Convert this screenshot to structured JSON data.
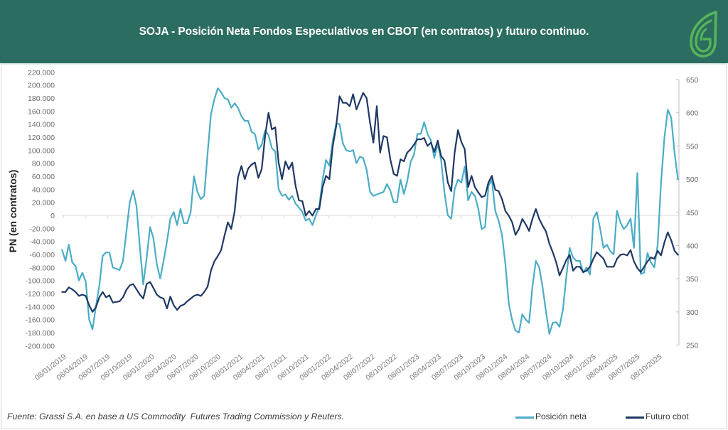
{
  "header": {
    "logo_icon": "grassi-leaf-logo-icon",
    "background": "#2b6d60",
    "logo_color": "#56b45a"
  },
  "footer": {
    "source": "Fuente: Grassi S.A. en base a US Commodity  Futures Trading Commission y Reuters."
  },
  "chart_data": {
    "type": "line",
    "title": "SOJA - Posición Neta Fondos Especulativos en CBOT (en contratos) y futuro continuo.",
    "ylabel": "PN  (en contratos)",
    "y2label": "",
    "grid": false,
    "zero_line": true,
    "legend": "bottom-right",
    "x": {
      "type": "date",
      "start": "2019-01-01",
      "step_days": 14,
      "tick_labels": [
        "08/01/2019",
        "08/04/2019",
        "08/07/2019",
        "08/10/2019",
        "08/01/2020",
        "08/04/2020",
        "08/07/2020",
        "08/10/2020",
        "08/01/2021",
        "08/04/2021",
        "08/07/2021",
        "08/10/2021",
        "08/01/2022",
        "08/04/2022",
        "08/07/2022",
        "08/10/2022",
        "08/01/2023",
        "08/04/2023",
        "08/07/2023",
        "08/10/2023",
        "08/01/2024",
        "08/04/2024",
        "08/07/2024",
        "08/10/2024",
        "08/01/2025",
        "08/04/2025",
        "08/07/2025",
        "08/10/2025"
      ]
    },
    "y_left": {
      "min": -200000,
      "max": 220000,
      "tick_step": 20000,
      "tick_labels": [
        "-200.000",
        "-180.000",
        "-160.000",
        "-140.000",
        "-120.000",
        "-100.000",
        "-80.000",
        "-60.000",
        "-40.000",
        "-20.000",
        "0",
        "20.000",
        "40.000",
        "60.000",
        "80.000",
        "100.000",
        "120.000",
        "140.000",
        "160.000",
        "180.000",
        "200.000",
        "220.000"
      ]
    },
    "y_right": {
      "min": 250,
      "max": 650,
      "tick_step": 50,
      "tick_labels": [
        "250",
        "300",
        "350",
        "400",
        "450",
        "500",
        "550",
        "600",
        "650"
      ]
    },
    "series": [
      {
        "name": "Posición neta",
        "axis": "left",
        "color": "#4bacc6",
        "values": [
          -53000,
          -70000,
          -45000,
          -72000,
          -78000,
          -100000,
          -88000,
          -102000,
          -160000,
          -175000,
          -140000,
          -108000,
          -62000,
          -57000,
          -57000,
          -80000,
          -82000,
          -84000,
          -70000,
          -26000,
          20000,
          38000,
          14000,
          -50000,
          -106000,
          -65000,
          -18000,
          -35000,
          -75000,
          -97000,
          -70000,
          -40000,
          -5000,
          5000,
          -15000,
          10000,
          -12000,
          -12000,
          5000,
          60000,
          36000,
          25000,
          30000,
          95000,
          155000,
          178000,
          195000,
          189000,
          180000,
          178000,
          165000,
          172000,
          165000,
          152000,
          145000,
          145000,
          128000,
          125000,
          101000,
          108000,
          130000,
          123000,
          103000,
          98000,
          40000,
          30000,
          32000,
          24000,
          30000,
          18000,
          12000,
          5000,
          -8000,
          -5000,
          -15000,
          0,
          14000,
          55000,
          85000,
          76000,
          115000,
          141000,
          140000,
          110000,
          100000,
          98000,
          100000,
          80000,
          90000,
          88000,
          70000,
          36000,
          30000,
          32000,
          34000,
          36000,
          48000,
          38000,
          20000,
          20000,
          55000,
          33000,
          52000,
          82000,
          93000,
          125000,
          125000,
          143000,
          125000,
          115000,
          88000,
          110000,
          85000,
          35000,
          0,
          -5000,
          40000,
          55000,
          50000,
          75000,
          23000,
          36000,
          30000,
          10000,
          -21000,
          -18000,
          45000,
          55000,
          7000,
          -8000,
          -30000,
          -75000,
          -135000,
          -161000,
          -177000,
          -180000,
          -152000,
          -160000,
          -165000,
          -110000,
          -70000,
          -80000,
          -110000,
          -148000,
          -182000,
          -165000,
          -164000,
          -171000,
          -145000,
          -95000,
          -50000,
          -65000,
          -70000,
          -70000,
          -88000,
          -80000,
          -91000,
          -5000,
          5000,
          -20000,
          -50000,
          -45000,
          -55000,
          -60000,
          7000,
          -11000,
          -21000,
          -15000,
          -5000,
          -50000,
          65000,
          -90000,
          -88000,
          -58000,
          -72000,
          -80000,
          -45000,
          50000,
          120000,
          162000,
          150000,
          95000,
          55000
        ]
      },
      {
        "name": "Futuro cbot",
        "axis": "right",
        "color": "#1f3864",
        "values": [
          330,
          330,
          337,
          334,
          330,
          324,
          326,
          324,
          310,
          300,
          307,
          322,
          330,
          322,
          325,
          314,
          315,
          316,
          322,
          333,
          340,
          342,
          334,
          326,
          320,
          342,
          345,
          336,
          326,
          322,
          320,
          305,
          323,
          310,
          303,
          309,
          311,
          316,
          320,
          324,
          326,
          324,
          330,
          338,
          362,
          376,
          384,
          393,
          415,
          435,
          425,
          452,
          503,
          520,
          500,
          516,
          522,
          525,
          502,
          515,
          565,
          600,
          575,
          578,
          525,
          500,
          527,
          515,
          525,
          490,
          468,
          467,
          445,
          452,
          445,
          455,
          455,
          488,
          505,
          500,
          550,
          580,
          625,
          615,
          615,
          610,
          628,
          605,
          618,
          630,
          622,
          585,
          555,
          610,
          540,
          565,
          563,
          530,
          508,
          505,
          530,
          527,
          540,
          545,
          552,
          560,
          560,
          562,
          550,
          555,
          541,
          558,
          535,
          528,
          495,
          482,
          540,
          574,
          556,
          545,
          488,
          505,
          488,
          480,
          473,
          475,
          495,
          505,
          484,
          482,
          470,
          452,
          445,
          435,
          416,
          425,
          440,
          432,
          422,
          440,
          455,
          440,
          430,
          421,
          403,
          390,
          375,
          355,
          366,
          378,
          386,
          362,
          368,
          368,
          360,
          362,
          368,
          380,
          390,
          385,
          380,
          368,
          368,
          368,
          380,
          386,
          387,
          385,
          393,
          376,
          366,
          360,
          368,
          376,
          382,
          380,
          392,
          385,
          405,
          420,
          408,
          392,
          386
        ]
      }
    ]
  }
}
